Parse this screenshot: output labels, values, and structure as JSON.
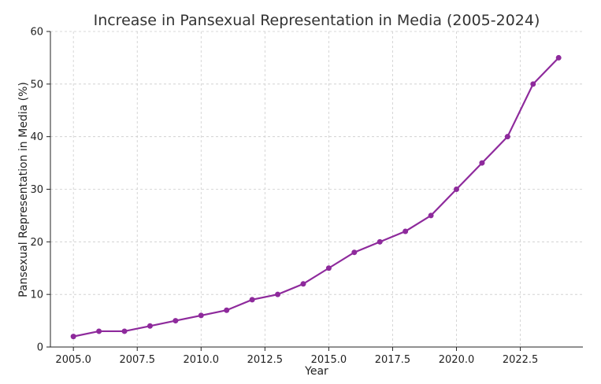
{
  "chart_data": {
    "type": "line",
    "title": "Increase in Pansexual Representation in Media (2005-2024)",
    "xlabel": "Year",
    "ylabel": "Pansexual Representation in Media (%)",
    "xlim": [
      2004.1,
      2024.95
    ],
    "ylim": [
      0,
      60
    ],
    "x_ticks": [
      2005.0,
      2007.5,
      2010.0,
      2012.5,
      2015.0,
      2017.5,
      2020.0,
      2022.5
    ],
    "x_tick_labels": [
      "2005.0",
      "2007.5",
      "2010.0",
      "2012.5",
      "2015.0",
      "2017.5",
      "2020.0",
      "2022.5"
    ],
    "y_ticks": [
      0,
      10,
      20,
      30,
      40,
      50,
      60
    ],
    "y_tick_labels": [
      "0",
      "10",
      "20",
      "30",
      "40",
      "50",
      "60"
    ],
    "grid": true,
    "color": "#8e2a9c",
    "series": [
      {
        "x": [
          2005,
          2006,
          2007,
          2008,
          2009,
          2010,
          2011,
          2012,
          2013,
          2014,
          2015,
          2016,
          2017,
          2018,
          2019,
          2020,
          2021,
          2022,
          2023,
          2024
        ],
        "values": [
          2,
          3,
          3,
          4,
          5,
          6,
          7,
          9,
          10,
          12,
          15,
          18,
          20,
          22,
          25,
          30,
          35,
          40,
          50,
          55
        ]
      }
    ]
  }
}
